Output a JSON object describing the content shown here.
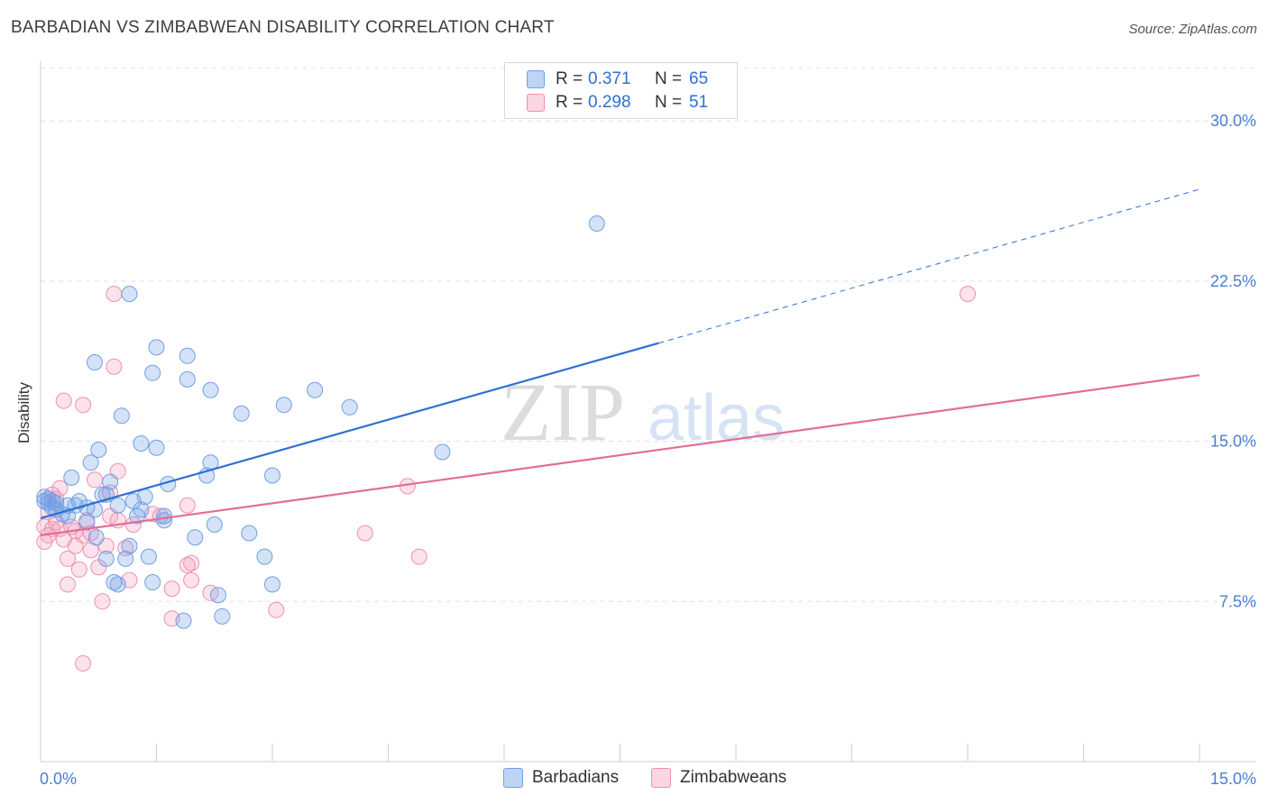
{
  "title": "BARBADIAN VS ZIMBABWEAN DISABILITY CORRELATION CHART",
  "source": "Source: ZipAtlas.com",
  "watermark": {
    "zip": "ZIP",
    "atlas": "atlas"
  },
  "legend": {
    "rows": [
      {
        "r_label": "R =",
        "r_value": "0.371",
        "n_label": "N =",
        "n_value": "65",
        "color": "#6fa0e6"
      },
      {
        "r_label": "R =",
        "r_value": "0.298",
        "n_label": "N =",
        "n_value": "51",
        "color": "#f4a3bd"
      }
    ]
  },
  "bottom_legend": [
    "Barbadians",
    "Zimbabweans"
  ],
  "colors": {
    "blue_fill": "rgba(111,160,230,0.30)",
    "blue_stroke": "#6fa0e6",
    "blue_line": "#2f6fd0",
    "pink_fill": "rgba(244,163,189,0.30)",
    "pink_stroke": "#f08fb0",
    "pink_line": "#e26d97",
    "grid": "#e0e0e0",
    "tick_text": "#4a7fd4"
  },
  "chart_data": {
    "type": "scatter",
    "title": "BARBADIAN VS ZIMBABWEAN DISABILITY CORRELATION CHART",
    "xlabel": "",
    "ylabel": "Disability",
    "xlim": [
      0,
      15
    ],
    "ylim": [
      0,
      32.5
    ],
    "x_tick_labels": [
      "0.0%",
      "15.0%"
    ],
    "y_ticks": [
      7.5,
      15.0,
      22.5,
      30.0
    ],
    "y_tick_labels": [
      "7.5%",
      "15.0%",
      "22.5%",
      "30.0%"
    ],
    "x_minor_ticks": [
      0,
      1.5,
      3,
      4.5,
      6,
      7.5,
      9,
      10.5,
      12,
      13.5,
      15
    ],
    "series": [
      {
        "name": "Barbadians",
        "R": 0.371,
        "N": 65,
        "trend": {
          "x0": 0,
          "y0": 11.4,
          "x1": 8.0,
          "y1": 19.6,
          "dash_x1": 15.0,
          "dash_y1": 26.8
        },
        "points": [
          [
            7.2,
            25.2
          ],
          [
            1.15,
            21.9
          ],
          [
            1.5,
            19.4
          ],
          [
            0.7,
            18.7
          ],
          [
            1.9,
            19.0
          ],
          [
            1.45,
            18.2
          ],
          [
            1.9,
            17.9
          ],
          [
            2.2,
            17.4
          ],
          [
            3.55,
            17.4
          ],
          [
            3.15,
            16.7
          ],
          [
            4.0,
            16.6
          ],
          [
            2.6,
            16.3
          ],
          [
            1.05,
            16.2
          ],
          [
            1.3,
            14.9
          ],
          [
            1.5,
            14.7
          ],
          [
            5.2,
            14.5
          ],
          [
            0.75,
            14.6
          ],
          [
            0.65,
            14.0
          ],
          [
            2.2,
            14.0
          ],
          [
            2.15,
            13.4
          ],
          [
            3.0,
            13.4
          ],
          [
            0.4,
            13.3
          ],
          [
            1.65,
            13.0
          ],
          [
            0.9,
            13.1
          ],
          [
            0.85,
            12.5
          ],
          [
            0.8,
            12.5
          ],
          [
            1.35,
            12.4
          ],
          [
            1.2,
            12.2
          ],
          [
            0.1,
            12.3
          ],
          [
            0.05,
            12.2
          ],
          [
            0.2,
            12.1
          ],
          [
            0.5,
            12.2
          ],
          [
            0.15,
            11.9
          ],
          [
            0.35,
            12.0
          ],
          [
            0.45,
            12.0
          ],
          [
            0.6,
            11.9
          ],
          [
            0.7,
            11.8
          ],
          [
            1.0,
            12.0
          ],
          [
            1.3,
            11.8
          ],
          [
            0.28,
            11.6
          ],
          [
            0.35,
            11.5
          ],
          [
            1.25,
            11.5
          ],
          [
            1.6,
            11.5
          ],
          [
            1.6,
            11.3
          ],
          [
            0.6,
            11.2
          ],
          [
            2.25,
            11.1
          ],
          [
            2.7,
            10.7
          ],
          [
            2.0,
            10.5
          ],
          [
            0.72,
            10.5
          ],
          [
            1.15,
            10.1
          ],
          [
            0.85,
            9.5
          ],
          [
            1.1,
            9.5
          ],
          [
            1.4,
            9.6
          ],
          [
            2.9,
            9.6
          ],
          [
            0.95,
            8.4
          ],
          [
            1.0,
            8.3
          ],
          [
            1.45,
            8.4
          ],
          [
            3.0,
            8.3
          ],
          [
            2.3,
            7.8
          ],
          [
            2.35,
            6.8
          ],
          [
            1.85,
            6.6
          ],
          [
            0.1,
            12.1
          ],
          [
            0.2,
            11.8
          ],
          [
            0.05,
            12.4
          ],
          [
            0.15,
            12.2
          ]
        ]
      },
      {
        "name": "Zimbabweans",
        "R": 0.298,
        "N": 51,
        "trend": {
          "x0": 0,
          "y0": 10.6,
          "x1": 15.0,
          "y1": 18.1
        },
        "points": [
          [
            0.95,
            21.9
          ],
          [
            12.0,
            21.9
          ],
          [
            0.95,
            18.5
          ],
          [
            0.3,
            16.9
          ],
          [
            0.55,
            16.7
          ],
          [
            1.0,
            13.6
          ],
          [
            0.7,
            13.2
          ],
          [
            4.75,
            12.9
          ],
          [
            0.25,
            12.8
          ],
          [
            0.15,
            12.5
          ],
          [
            0.2,
            12.3
          ],
          [
            0.9,
            12.6
          ],
          [
            1.9,
            12.0
          ],
          [
            1.45,
            11.6
          ],
          [
            0.1,
            11.7
          ],
          [
            0.9,
            11.5
          ],
          [
            1.0,
            11.3
          ],
          [
            1.2,
            11.1
          ],
          [
            0.05,
            11.0
          ],
          [
            0.15,
            10.9
          ],
          [
            0.25,
            10.9
          ],
          [
            0.45,
            10.8
          ],
          [
            0.55,
            10.6
          ],
          [
            0.65,
            10.7
          ],
          [
            0.1,
            10.6
          ],
          [
            0.3,
            10.4
          ],
          [
            0.05,
            10.3
          ],
          [
            0.45,
            10.1
          ],
          [
            0.85,
            10.1
          ],
          [
            0.65,
            9.9
          ],
          [
            1.1,
            10.0
          ],
          [
            0.35,
            9.5
          ],
          [
            1.95,
            9.3
          ],
          [
            1.9,
            9.2
          ],
          [
            4.9,
            9.6
          ],
          [
            4.2,
            10.7
          ],
          [
            0.5,
            9.0
          ],
          [
            0.75,
            9.1
          ],
          [
            1.15,
            8.5
          ],
          [
            0.35,
            8.3
          ],
          [
            1.95,
            8.5
          ],
          [
            1.7,
            8.1
          ],
          [
            2.2,
            7.9
          ],
          [
            0.8,
            7.5
          ],
          [
            3.05,
            7.1
          ],
          [
            1.7,
            6.7
          ],
          [
            0.55,
            4.6
          ],
          [
            0.2,
            11.2
          ],
          [
            0.4,
            11.0
          ],
          [
            1.55,
            11.5
          ],
          [
            0.6,
            11.3
          ]
        ]
      }
    ]
  }
}
